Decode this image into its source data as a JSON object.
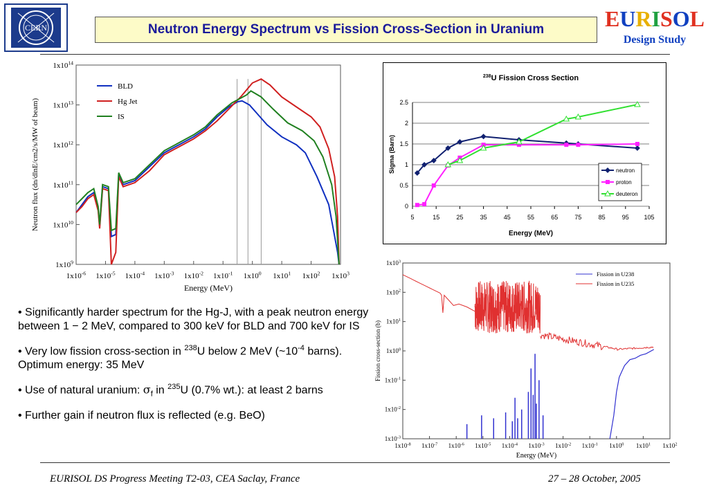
{
  "header": {
    "title": "Neutron Energy Spectrum vs Fission Cross-Section in Uranium",
    "cern_logo_text": "CERN",
    "eurisol_logo": {
      "letters": [
        "E",
        "U",
        "R",
        "I",
        "S",
        "O",
        "L"
      ],
      "colors": [
        "#e03020",
        "#1040c0",
        "#e8b000",
        "#20a040",
        "#e03020",
        "#1040c0",
        "#e03020"
      ],
      "subtitle": "Design Study"
    }
  },
  "bullets": [
    {
      "parts": [
        {
          "t": "• Significantly harder spectrum for the Hg-J, with a peak neutron energy between 1 − 2 MeV, compared to 300 keV for BLD and 700 keV for IS"
        }
      ]
    },
    {
      "parts": [
        {
          "t": "• Very low fission cross-section in "
        },
        {
          "t": "238",
          "sup": true
        },
        {
          "t": "U below 2 MeV (~10"
        },
        {
          "t": "-4",
          "sup": true
        },
        {
          "t": " barns). Optimum energy: 35 MeV"
        }
      ]
    },
    {
      "parts": [
        {
          "t": "• Use of natural uranium: "
        },
        {
          "t": "σ",
          "sym": true
        },
        {
          "t": "f",
          "sub": true
        },
        {
          "t": " in "
        },
        {
          "t": "235",
          "sup": true
        },
        {
          "t": "U (0.7% wt.): at least 2 barns"
        }
      ]
    },
    {
      "parts": [
        {
          "t": "• Further gain if neutron flux is reflected (e.g. BeO)"
        }
      ]
    }
  ],
  "footer": {
    "left": "EURISOL DS Progress Meeting T2-03, CEA Saclay, France",
    "right": "27 – 28 October, 2005"
  },
  "chart_data": [
    {
      "type": "line",
      "log_x": true,
      "log_y": true,
      "xlabel": "Energy (MeV)",
      "ylabel": "Neutron flux (dn/dlnE/cm2/s/MW of beam)",
      "xlim_exp": [
        -6,
        3
      ],
      "ylim_exp": [
        9,
        14
      ],
      "x_tick_labels": [
        "1x10-6",
        "1x10-5",
        "1x10-4",
        "1x10-3",
        "1x10-2",
        "1x10-1",
        "1x10^0",
        "1x10^1",
        "1x10^2",
        "1x10^3"
      ],
      "y_tick_labels": [
        "1x10^9",
        "1x10^10",
        "1x10^11",
        "1x10^12",
        "1x10^13",
        "1x10^14"
      ],
      "legend": [
        "BLD",
        "Hg Jet",
        "IS"
      ],
      "legend_position": "top-left",
      "series": [
        {
          "name": "BLD",
          "color": "#1030c0",
          "log10_points": [
            [
              -6,
              10.3
            ],
            [
              -5.8,
              10.5
            ],
            [
              -5.6,
              10.7
            ],
            [
              -5.4,
              10.8
            ],
            [
              -5.25,
              10.4
            ],
            [
              -5.2,
              9.95
            ],
            [
              -5.1,
              10.95
            ],
            [
              -4.9,
              10.9
            ],
            [
              -4.8,
              9.7
            ],
            [
              -4.65,
              9.75
            ],
            [
              -4.55,
              11.25
            ],
            [
              -4.4,
              11
            ],
            [
              -4,
              11.1
            ],
            [
              -3.5,
              11.45
            ],
            [
              -3,
              11.8
            ],
            [
              -2.5,
              12.0
            ],
            [
              -2,
              12.2
            ],
            [
              -1.6,
              12.4
            ],
            [
              -1.2,
              12.7
            ],
            [
              -0.8,
              12.95
            ],
            [
              -0.5,
              13.08
            ],
            [
              -0.35,
              13.1
            ],
            [
              -0.1,
              13.0
            ],
            [
              0.2,
              12.75
            ],
            [
              0.5,
              12.5
            ],
            [
              1,
              12.2
            ],
            [
              1.5,
              12
            ],
            [
              1.8,
              11.8
            ],
            [
              2.2,
              11.2
            ],
            [
              2.6,
              10.5
            ],
            [
              2.9,
              9.3
            ],
            [
              2.95,
              9
            ]
          ]
        },
        {
          "name": "Hg Jet",
          "color": "#d02020",
          "log10_points": [
            [
              -6,
              10.3
            ],
            [
              -5.8,
              10.45
            ],
            [
              -5.6,
              10.65
            ],
            [
              -5.4,
              10.75
            ],
            [
              -5.25,
              10.35
            ],
            [
              -5.2,
              9.9
            ],
            [
              -5.1,
              10.9
            ],
            [
              -4.9,
              10.85
            ],
            [
              -4.8,
              9.0
            ],
            [
              -4.65,
              9.3
            ],
            [
              -4.55,
              11.2
            ],
            [
              -4.4,
              10.95
            ],
            [
              -4,
              11.05
            ],
            [
              -3.5,
              11.35
            ],
            [
              -3,
              11.75
            ],
            [
              -2.5,
              11.95
            ],
            [
              -2,
              12.15
            ],
            [
              -1.6,
              12.35
            ],
            [
              -1.2,
              12.6
            ],
            [
              -0.8,
              12.9
            ],
            [
              -0.4,
              13.2
            ],
            [
              0,
              13.55
            ],
            [
              0.3,
              13.65
            ],
            [
              0.6,
              13.5
            ],
            [
              1,
              13.2
            ],
            [
              1.5,
              12.95
            ],
            [
              2,
              12.7
            ],
            [
              2.3,
              12.45
            ],
            [
              2.6,
              11.9
            ],
            [
              2.8,
              11.2
            ],
            [
              2.9,
              10.2
            ],
            [
              2.95,
              9
            ]
          ]
        },
        {
          "name": "IS",
          "color": "#208020",
          "log10_points": [
            [
              -6,
              10.5
            ],
            [
              -5.8,
              10.65
            ],
            [
              -5.6,
              10.8
            ],
            [
              -5.4,
              10.9
            ],
            [
              -5.25,
              10.45
            ],
            [
              -5.2,
              10.0
            ],
            [
              -5.1,
              11.0
            ],
            [
              -4.9,
              10.95
            ],
            [
              -4.8,
              9.85
            ],
            [
              -4.65,
              9.9
            ],
            [
              -4.55,
              11.3
            ],
            [
              -4.4,
              11.05
            ],
            [
              -4,
              11.15
            ],
            [
              -3.5,
              11.5
            ],
            [
              -3,
              11.85
            ],
            [
              -2.5,
              12.05
            ],
            [
              -2,
              12.25
            ],
            [
              -1.6,
              12.45
            ],
            [
              -1.2,
              12.75
            ],
            [
              -0.7,
              13.05
            ],
            [
              -0.2,
              13.25
            ],
            [
              -0.05,
              13.35
            ],
            [
              0.3,
              13.2
            ],
            [
              0.7,
              12.9
            ],
            [
              1.2,
              12.55
            ],
            [
              1.7,
              12.35
            ],
            [
              2.1,
              12.1
            ],
            [
              2.4,
              11.7
            ],
            [
              2.7,
              11.0
            ],
            [
              2.85,
              10.2
            ],
            [
              2.95,
              9
            ]
          ]
        }
      ],
      "peak_markers_log10_x": [
        -0.52,
        -0.15,
        0.3
      ]
    },
    {
      "type": "line",
      "title": "238U Fission Cross Section",
      "title_sup": "238",
      "title_rest": "U Fission Cross Section",
      "xlabel": "Energy (MeV)",
      "ylabel": "Sigma (Barn)",
      "xlim": [
        5,
        105
      ],
      "ylim": [
        0,
        2.5
      ],
      "x_ticks": [
        5,
        15,
        25,
        35,
        45,
        55,
        65,
        75,
        85,
        95,
        105
      ],
      "y_ticks": [
        0,
        0.5,
        1,
        1.5,
        2,
        2.5
      ],
      "legend_position": "bottom-right",
      "series": [
        {
          "name": "neutron",
          "color": "#102070",
          "marker": "diamond",
          "x": [
            7,
            10,
            14,
            20,
            25,
            35,
            50,
            70,
            75,
            100
          ],
          "y": [
            0.8,
            1.0,
            1.1,
            1.4,
            1.55,
            1.68,
            1.6,
            1.52,
            1.5,
            1.4
          ]
        },
        {
          "name": "proton",
          "color": "#ff20ff",
          "marker": "square",
          "x": [
            7,
            10,
            14,
            20,
            25,
            35,
            50,
            70,
            75,
            100
          ],
          "y": [
            0.03,
            0.05,
            0.5,
            0.98,
            1.17,
            1.48,
            1.48,
            1.48,
            1.48,
            1.5
          ]
        },
        {
          "name": "deuteron",
          "color": "#30e030",
          "marker": "triangle",
          "x": [
            20,
            25,
            35,
            50,
            70,
            75,
            100
          ],
          "y": [
            1.0,
            1.1,
            1.4,
            1.55,
            2.1,
            2.15,
            2.45
          ]
        }
      ]
    },
    {
      "type": "line",
      "log_x": true,
      "log_y": true,
      "xlabel": "Energy (MeV)",
      "ylabel": "Fission cross-section (b)",
      "xlim_exp": [
        -8,
        2
      ],
      "ylim_exp": [
        -3,
        3
      ],
      "x_tick_labels": [
        "1x10-8",
        "1x10-7",
        "1x10-6",
        "1x10-5",
        "1x10-4",
        "1x10-3",
        "1x10-2",
        "1x10-1",
        "1x10^0",
        "1x10^1",
        "1x10^2"
      ],
      "y_tick_labels": [
        "1x10-3",
        "1x10-2",
        "1x10-1",
        "1x10^0",
        "1x10^1",
        "1x10^2",
        "1x10^3"
      ],
      "legend_position": "top-right",
      "series": [
        {
          "name": "Fission in U238",
          "color": "#3030d0"
        },
        {
          "name": "Fission in U235",
          "color": "#e03030"
        }
      ]
    }
  ]
}
